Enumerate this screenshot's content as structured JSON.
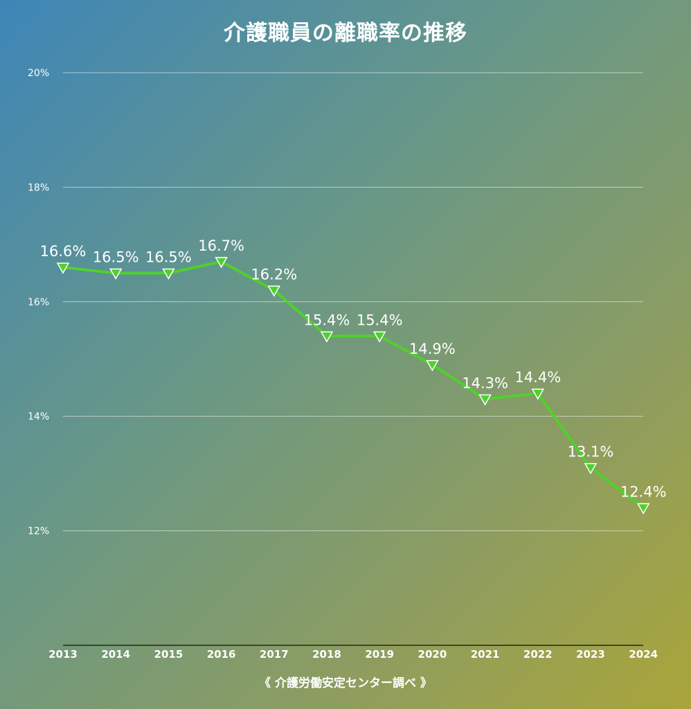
{
  "chart_data": {
    "type": "line",
    "title": "介護職員の離職率の推移",
    "source": "《 介護労働安定センター調べ 》",
    "categories": [
      "2013",
      "2014",
      "2015",
      "2016",
      "2017",
      "2018",
      "2019",
      "2020",
      "2021",
      "2022",
      "2023",
      "2024"
    ],
    "values": [
      16.6,
      16.5,
      16.5,
      16.7,
      16.2,
      15.4,
      15.4,
      14.9,
      14.3,
      14.4,
      13.1,
      12.4
    ],
    "data_labels": [
      "16.6%",
      "16.5%",
      "16.5%",
      "16.7%",
      "16.2%",
      "15.4%",
      "15.4%",
      "14.9%",
      "14.3%",
      "14.4%",
      "13.1%",
      "12.4%"
    ],
    "y_ticks": [
      12,
      14,
      16,
      18,
      20
    ],
    "y_tick_labels": [
      "12%",
      "14%",
      "16%",
      "18%",
      "20%"
    ],
    "ylim": [
      10,
      20
    ],
    "grid": true,
    "legend": "none",
    "marker": "triangle-down",
    "colors": {
      "line": "#4fd12c",
      "marker_fill": "#4fd12c",
      "marker_stroke": "#ffffff",
      "label": "#ffffff"
    }
  }
}
